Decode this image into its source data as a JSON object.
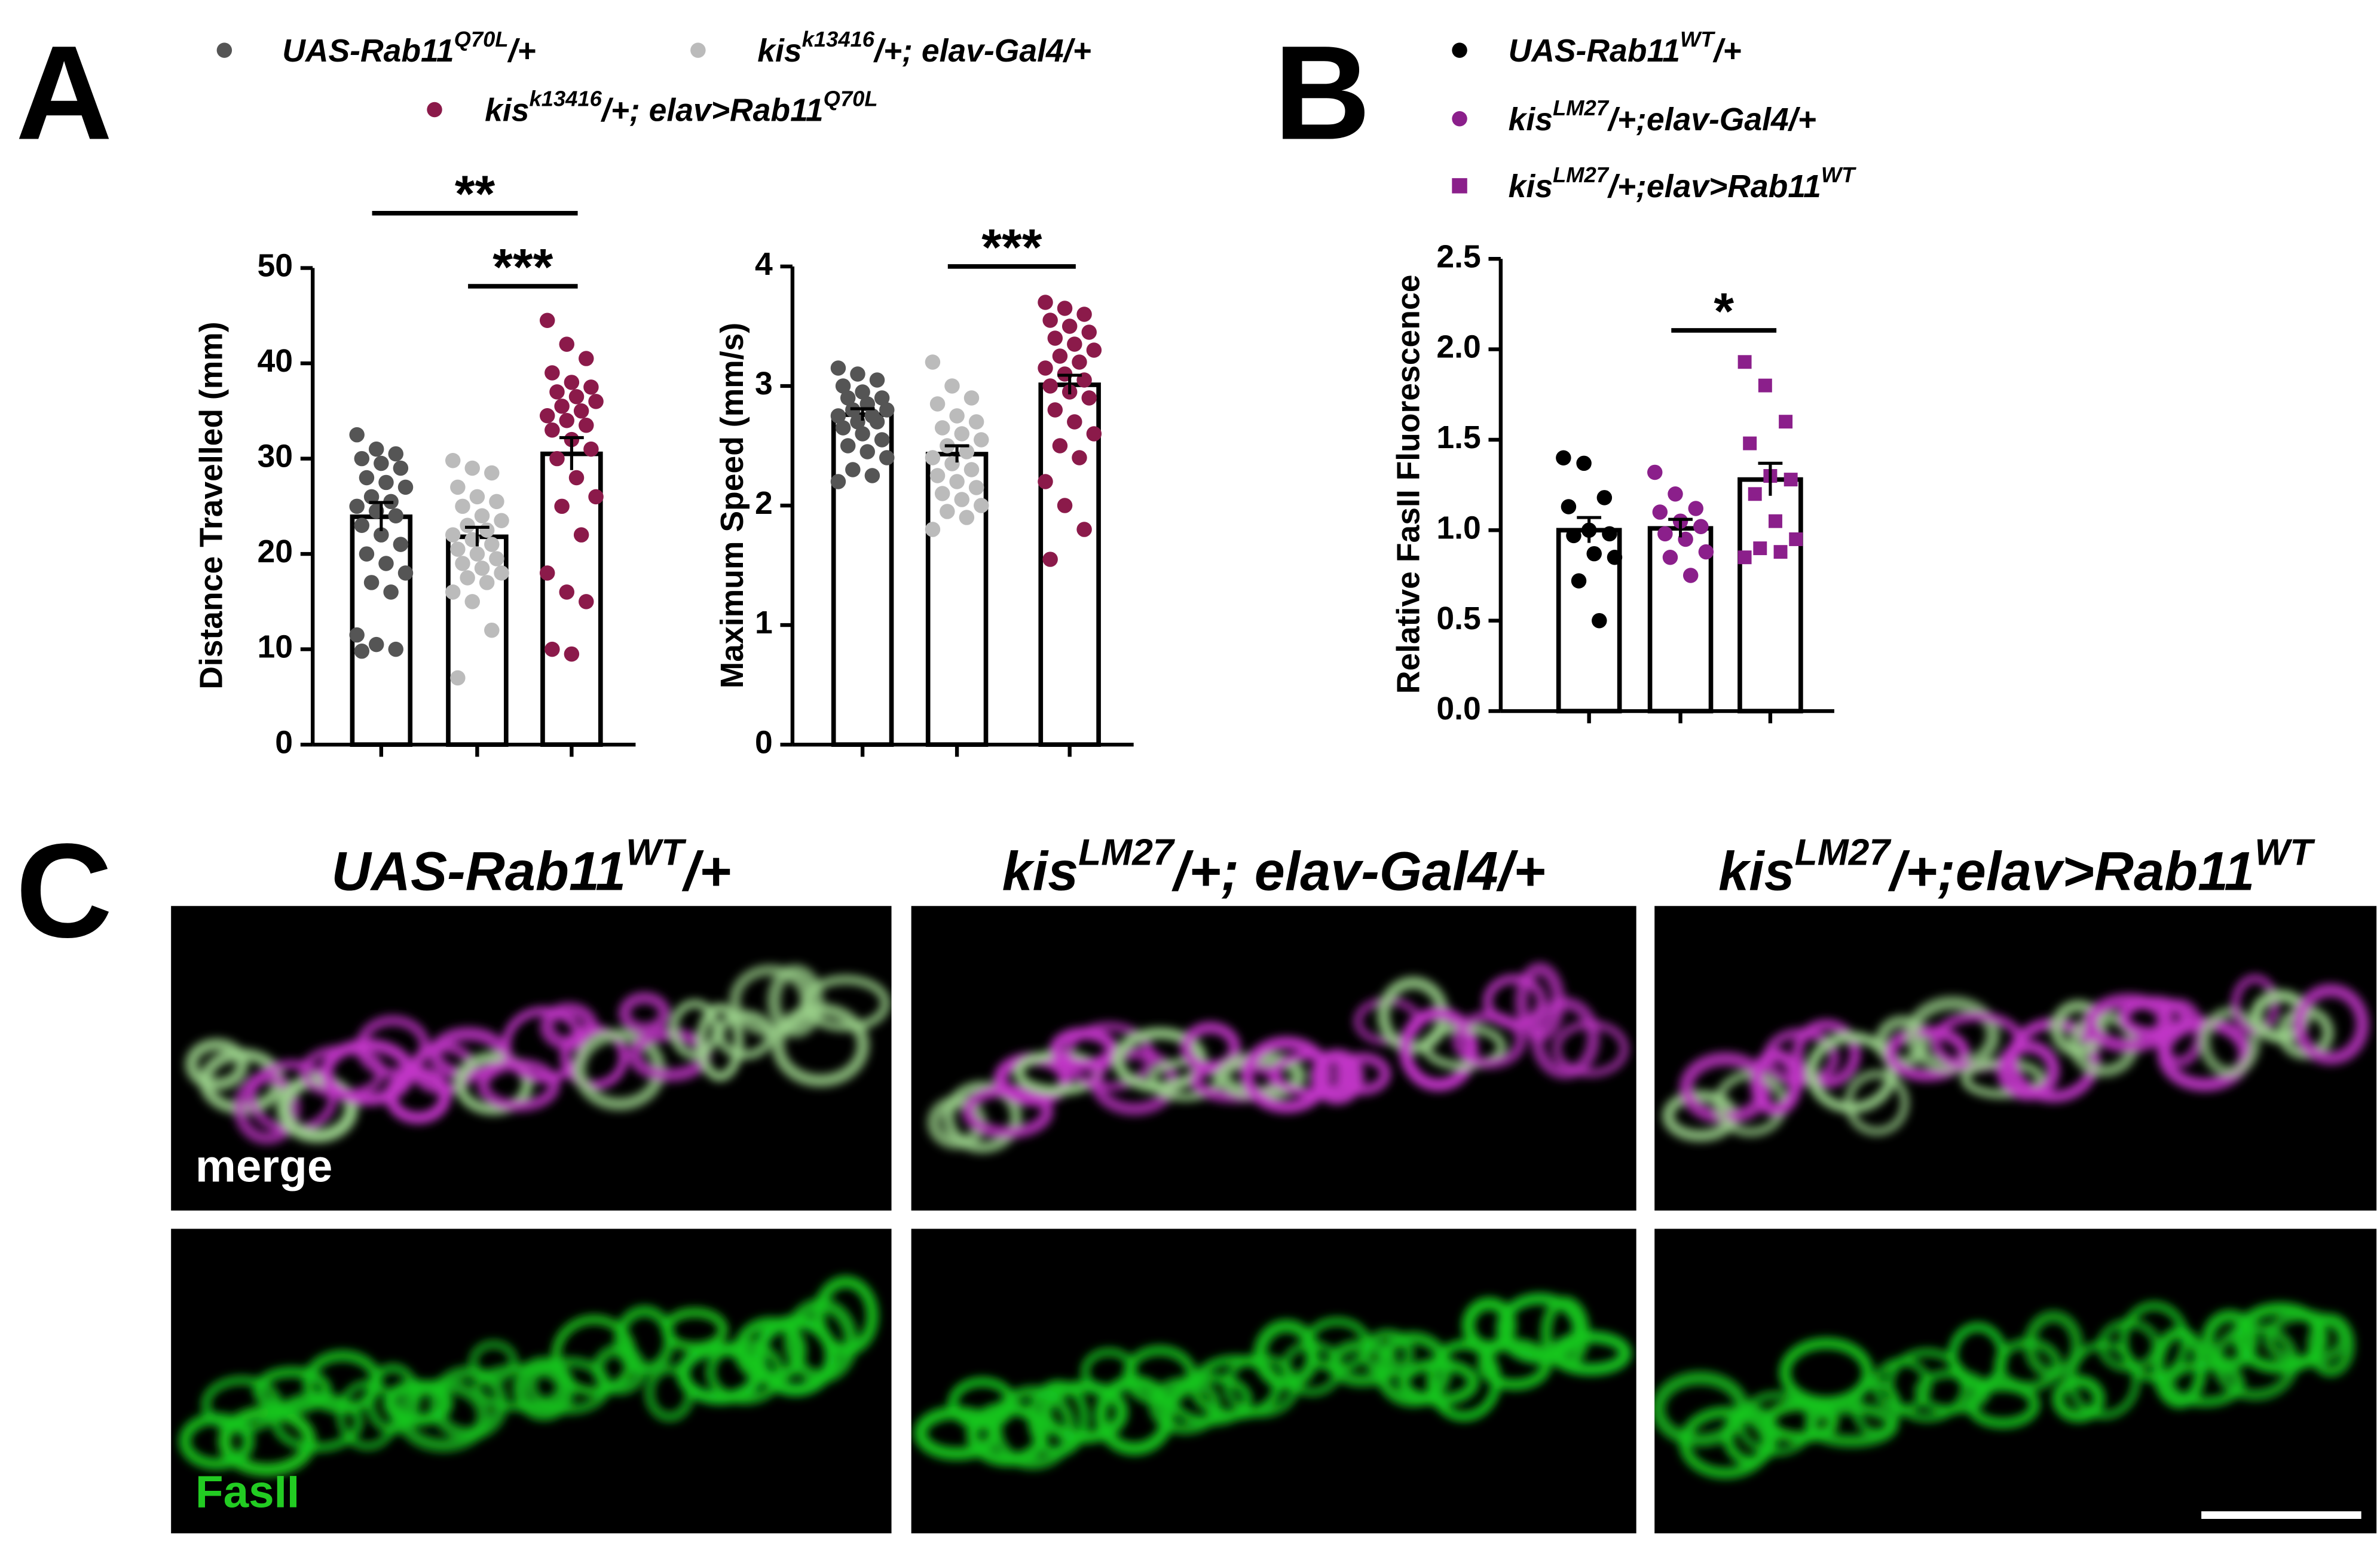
{
  "panel_labels": [
    "A",
    "B",
    "C"
  ],
  "chart_data": [
    {
      "type": "bar",
      "ylabel": "Distance Travelled (mm)",
      "ylim": [
        0,
        50
      ],
      "yticks": [
        0,
        10,
        20,
        30,
        40,
        50
      ],
      "series": [
        {
          "name": [
            "UAS-Rab11",
            "Q70L",
            "/+"
          ],
          "color": "#555555",
          "marker": "circle",
          "values": [
            23.9
          ],
          "errors": [
            1.5
          ],
          "points": [
            32.5,
            31,
            30.5,
            30,
            29.5,
            29,
            28,
            27.5,
            27,
            26,
            25.5,
            25,
            24.5,
            24,
            23,
            22,
            21,
            20,
            19,
            18,
            17,
            16,
            11.5,
            10.5,
            10,
            9.8
          ]
        },
        {
          "name": [
            "kis",
            "k13416",
            "/+; elav-Gal4/+"
          ],
          "color": "#bbbbbb",
          "marker": "circle",
          "values": [
            21.8
          ],
          "errors": [
            1.0
          ],
          "points": [
            29.8,
            29,
            28.5,
            27,
            26,
            25.5,
            25,
            24,
            23.5,
            23,
            22.5,
            22,
            21.5,
            21,
            20.5,
            20,
            19.5,
            19,
            18.5,
            18,
            17.5,
            17,
            16,
            15,
            12,
            7
          ]
        },
        {
          "name": [
            "kis",
            "k13416",
            "/+; elav>Rab11",
            "Q70L"
          ],
          "color": "#8b1a4a",
          "marker": "circle",
          "values": [
            30.5
          ],
          "errors": [
            1.7
          ],
          "points": [
            44.5,
            42,
            40.5,
            39,
            38,
            37.5,
            37,
            36.5,
            36,
            35.5,
            35,
            34.5,
            34,
            33.5,
            33,
            32,
            31,
            30,
            28,
            26,
            25,
            22,
            18,
            16,
            15,
            10,
            9.5
          ]
        }
      ],
      "annotations": [
        {
          "text": "**",
          "groups": [
            0,
            2
          ]
        },
        {
          "text": "***",
          "groups": [
            1,
            2
          ]
        }
      ]
    },
    {
      "type": "bar",
      "ylabel": "Maximum Speed (mm/s)",
      "ylim": [
        0,
        4
      ],
      "yticks": [
        0,
        1,
        2,
        3,
        4
      ],
      "series": [
        {
          "color": "#555555",
          "marker": "circle",
          "values": [
            2.76
          ],
          "errors": [
            0.05
          ],
          "points": [
            3.15,
            3.1,
            3.05,
            3.0,
            2.95,
            2.9,
            2.9,
            2.85,
            2.8,
            2.8,
            2.75,
            2.75,
            2.7,
            2.7,
            2.65,
            2.6,
            2.55,
            2.5,
            2.45,
            2.4,
            2.3,
            2.25,
            2.2
          ]
        },
        {
          "color": "#bbbbbb",
          "marker": "circle",
          "values": [
            2.43
          ],
          "errors": [
            0.07
          ],
          "points": [
            3.2,
            3.0,
            2.9,
            2.85,
            2.75,
            2.7,
            2.65,
            2.6,
            2.55,
            2.5,
            2.45,
            2.4,
            2.35,
            2.3,
            2.25,
            2.2,
            2.15,
            2.1,
            2.05,
            2.0,
            1.95,
            1.9,
            1.8
          ]
        },
        {
          "color": "#8b1a4a",
          "marker": "circle",
          "values": [
            3.01
          ],
          "errors": [
            0.08
          ],
          "points": [
            3.7,
            3.65,
            3.6,
            3.55,
            3.5,
            3.45,
            3.4,
            3.35,
            3.3,
            3.25,
            3.2,
            3.15,
            3.1,
            3.05,
            3.0,
            2.95,
            2.9,
            2.8,
            2.7,
            2.6,
            2.5,
            2.4,
            2.2,
            2.0,
            1.8,
            1.55
          ]
        }
      ],
      "annotations": [
        {
          "text": "***",
          "groups": [
            1,
            2
          ]
        }
      ]
    },
    {
      "type": "bar",
      "ylabel": "Relative FasII Fluorescence",
      "ylim": [
        0,
        2.5
      ],
      "yticks": [
        {
          "value": 0,
          "label": "0.0"
        },
        0.5,
        {
          "value": 1,
          "label": "1.0"
        },
        1.5,
        {
          "value": 2,
          "label": "2.0"
        },
        2.5
      ],
      "series": [
        {
          "name": [
            "UAS-Rab11",
            "WT",
            "/+"
          ],
          "color": "#000000",
          "marker": "circle",
          "values": [
            1.0
          ],
          "errors": [
            0.07
          ],
          "points": [
            1.4,
            1.37,
            1.18,
            1.13,
            1.0,
            0.98,
            0.97,
            0.87,
            0.85,
            0.72,
            0.5
          ]
        },
        {
          "name": [
            "kis",
            "LM27",
            "/+;elav-Gal4/+"
          ],
          "color": "#8b1f8b",
          "marker": "circle",
          "values": [
            1.01
          ],
          "errors": [
            0.05
          ],
          "points": [
            1.32,
            1.2,
            1.12,
            1.1,
            1.05,
            1.02,
            0.98,
            0.95,
            0.88,
            0.85,
            0.75
          ]
        },
        {
          "name": [
            "kis",
            "LM27",
            "/+;elav>Rab11",
            "WT"
          ],
          "color": "#8b1f8b",
          "marker": "square",
          "values": [
            1.28
          ],
          "errors": [
            0.09
          ],
          "points": [
            1.93,
            1.8,
            1.6,
            1.48,
            1.3,
            1.28,
            1.2,
            1.05,
            0.95,
            0.9,
            0.88,
            0.85
          ]
        }
      ],
      "annotations": [
        {
          "text": "*",
          "groups": [
            1,
            2
          ]
        }
      ]
    }
  ],
  "panel_c": {
    "titles": [
      [
        "UAS-Rab11",
        "WT",
        "/+"
      ],
      [
        "kis",
        "LM27",
        "/+; elav-Gal4/+"
      ],
      [
        "kis",
        "LM27",
        "/+;elav>Rab11",
        "WT"
      ]
    ],
    "channels": [
      "merge",
      "FasII"
    ]
  }
}
